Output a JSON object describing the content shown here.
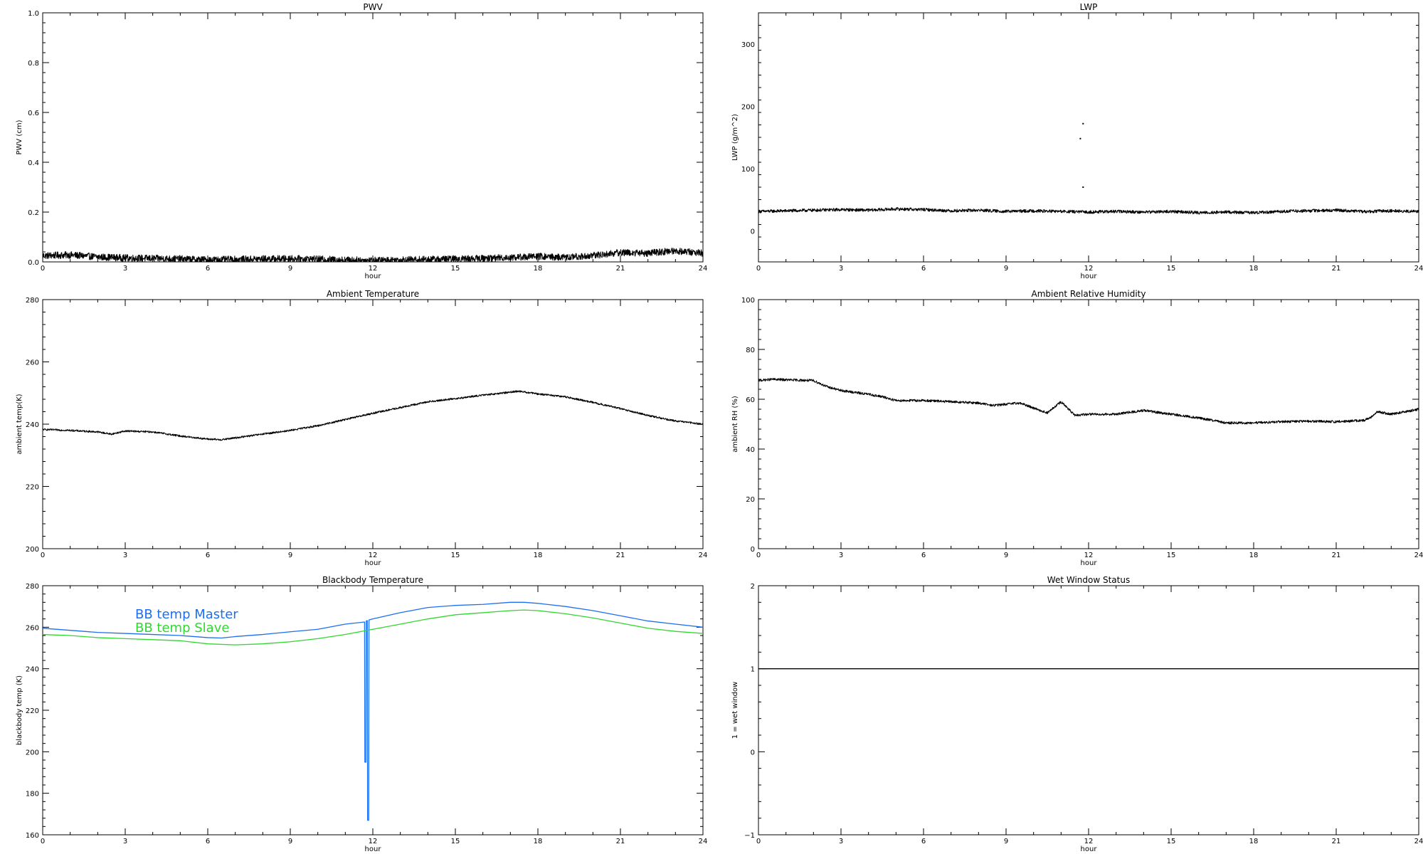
{
  "chart_data": [
    {
      "type": "line",
      "title": "PWV",
      "xlabel": "hour",
      "ylabel": "PWV (cm)",
      "xlim": [
        0,
        24
      ],
      "ylim": [
        0,
        1
      ],
      "xticks": [
        0,
        3,
        6,
        9,
        12,
        15,
        18,
        21,
        24
      ],
      "xtick_labels": [
        "0",
        "3",
        "6",
        "9",
        "12",
        "15",
        "18",
        "21",
        "24"
      ],
      "yticks": [
        0,
        0.2,
        0.4,
        0.6,
        0.8,
        1.0
      ],
      "ytick_labels": [
        "0.0",
        "0.2",
        "0.4",
        "0.6",
        "0.8",
        "1.0"
      ],
      "grid": false,
      "series": [
        {
          "color": "#000000",
          "noise": 0.014,
          "x": [
            0,
            1,
            2,
            3,
            4,
            5,
            6,
            7,
            8,
            9,
            10,
            11,
            12,
            13,
            14,
            15,
            16,
            17,
            18,
            19,
            20,
            21,
            22,
            23,
            24
          ],
          "y": [
            0.025,
            0.028,
            0.02,
            0.016,
            0.014,
            0.012,
            0.008,
            0.01,
            0.012,
            0.013,
            0.011,
            0.008,
            0.006,
            0.008,
            0.01,
            0.012,
            0.014,
            0.018,
            0.022,
            0.018,
            0.025,
            0.038,
            0.035,
            0.045,
            0.035
          ]
        }
      ]
    },
    {
      "type": "line",
      "title": "LWP",
      "xlabel": "hour",
      "ylabel": "LWP (g/m^2)",
      "xlim": [
        0,
        24
      ],
      "ylim": [
        -50,
        350
      ],
      "xticks": [
        0,
        3,
        6,
        9,
        12,
        15,
        18,
        21,
        24
      ],
      "xtick_labels": [
        "0",
        "3",
        "6",
        "9",
        "12",
        "15",
        "18",
        "21",
        "24"
      ],
      "yticks": [
        0,
        100,
        200,
        300
      ],
      "ytick_labels": [
        "0",
        "100",
        "200",
        "300"
      ],
      "grid": false,
      "series": [
        {
          "color": "#000000",
          "noise": 2.5,
          "x": [
            0,
            1,
            2,
            3,
            4,
            5,
            6,
            7,
            8,
            9,
            10,
            11,
            12,
            13,
            14,
            15,
            16,
            17,
            18,
            19,
            20,
            21,
            22,
            23,
            24
          ],
          "y": [
            31,
            32,
            33,
            34,
            33,
            35,
            34,
            32,
            33,
            31,
            32,
            31,
            30,
            31,
            30,
            31,
            29,
            30,
            29,
            31,
            32,
            33,
            31,
            32,
            31
          ]
        }
      ],
      "points": [
        {
          "x": 11.8,
          "y": 172
        },
        {
          "x": 11.7,
          "y": 148
        },
        {
          "x": 11.8,
          "y": 70
        }
      ]
    },
    {
      "type": "line",
      "title": "Ambient Temperature",
      "xlabel": "hour",
      "ylabel": "ambient temp(K)",
      "xlim": [
        0,
        24
      ],
      "ylim": [
        200,
        280
      ],
      "xticks": [
        0,
        3,
        6,
        9,
        12,
        15,
        18,
        21,
        24
      ],
      "xtick_labels": [
        "0",
        "3",
        "6",
        "9",
        "12",
        "15",
        "18",
        "21",
        "24"
      ],
      "yticks": [
        200,
        220,
        240,
        260,
        280
      ],
      "ytick_labels": [
        "200",
        "220",
        "240",
        "260",
        "280"
      ],
      "grid": false,
      "series": [
        {
          "color": "#000000",
          "noise": 0.3,
          "x": [
            0,
            1,
            2,
            2.5,
            3,
            4,
            5,
            6,
            6.5,
            7,
            8,
            9,
            10,
            11,
            12,
            13,
            14,
            15,
            16,
            17,
            17.3,
            18,
            19,
            20,
            21,
            22,
            23,
            24
          ],
          "y": [
            238.3,
            238,
            237.5,
            236.8,
            237.8,
            237.5,
            236.2,
            235.2,
            235.0,
            235.6,
            236.8,
            238,
            239.5,
            241.5,
            243.5,
            245.3,
            247.2,
            248.2,
            249.3,
            250.3,
            250.6,
            249.7,
            248.8,
            247,
            245,
            242.8,
            241,
            240
          ]
        }
      ]
    },
    {
      "type": "line",
      "title": "Ambient Relative Humidity",
      "xlabel": "hour",
      "ylabel": "ambient RH (%)",
      "xlim": [
        0,
        24
      ],
      "ylim": [
        0,
        100
      ],
      "xticks": [
        0,
        3,
        6,
        9,
        12,
        15,
        18,
        21,
        24
      ],
      "xtick_labels": [
        "0",
        "3",
        "6",
        "9",
        "12",
        "15",
        "18",
        "21",
        "24"
      ],
      "yticks": [
        0,
        20,
        40,
        60,
        80,
        100
      ],
      "ytick_labels": [
        "0",
        "20",
        "40",
        "60",
        "80",
        "100"
      ],
      "grid": false,
      "series": [
        {
          "color": "#000000",
          "noise": 0.5,
          "x": [
            0,
            0.5,
            1,
            2,
            2.5,
            3,
            4,
            4.5,
            5,
            6,
            7,
            8,
            8.5,
            9,
            9.5,
            10,
            10.5,
            11,
            11.5,
            12,
            13,
            14,
            15,
            16,
            16.5,
            17,
            18,
            19,
            20,
            21,
            22,
            22.3,
            22.5,
            23,
            24
          ],
          "y": [
            67.5,
            68,
            67.8,
            67.5,
            65,
            63.5,
            62,
            61,
            59.5,
            59.5,
            59,
            58.5,
            57.5,
            58,
            58.5,
            56.5,
            54.5,
            59,
            53.5,
            54,
            54,
            55.5,
            54,
            52.5,
            51.5,
            50.5,
            50.5,
            51,
            51.2,
            51,
            51.5,
            53,
            55,
            54,
            56
          ]
        }
      ]
    },
    {
      "type": "line",
      "title": "Blackbody Temperature",
      "xlabel": "hour",
      "ylabel": "blackbody temp (K)",
      "xlim": [
        0,
        24
      ],
      "ylim": [
        160,
        280
      ],
      "xticks": [
        0,
        3,
        6,
        9,
        12,
        15,
        18,
        21,
        24
      ],
      "xtick_labels": [
        "0",
        "3",
        "6",
        "9",
        "12",
        "15",
        "18",
        "21",
        "24"
      ],
      "yticks": [
        160,
        180,
        200,
        220,
        240,
        260,
        280
      ],
      "ytick_labels": [
        "160",
        "180",
        "200",
        "220",
        "240",
        "260",
        "280"
      ],
      "grid": false,
      "legend": "upper-left",
      "series": [
        {
          "name": "BB temp Master",
          "color": "#1e6ef0",
          "noise": 0,
          "x": [
            0,
            1,
            2,
            3,
            4,
            5,
            6,
            6.5,
            7,
            8,
            9,
            10,
            11,
            11.7,
            11.71,
            11.75,
            11.76,
            11.8,
            11.81,
            11.85,
            11.86,
            12,
            13,
            14,
            15,
            16,
            17,
            17.5,
            18,
            19,
            20,
            21,
            22,
            23,
            24
          ],
          "y": [
            259.5,
            258.5,
            257.5,
            257,
            256.5,
            256,
            255,
            254.8,
            255.5,
            256.5,
            257.8,
            259,
            261.5,
            262.5,
            195,
            195,
            263,
            263.2,
            167,
            167,
            263.5,
            264,
            267,
            269.5,
            270.5,
            271,
            272,
            272,
            271.5,
            270,
            268,
            265.5,
            263,
            261.5,
            260
          ]
        },
        {
          "name": "BB temp Slave",
          "color": "#2fd82f",
          "noise": 0,
          "x": [
            0,
            1,
            2,
            3,
            4,
            5,
            6,
            7,
            8,
            9,
            10,
            11,
            12,
            13,
            14,
            15,
            16,
            17,
            17.5,
            18,
            19,
            20,
            21,
            22,
            23,
            24
          ],
          "y": [
            256.5,
            256,
            255,
            254.5,
            254,
            253.5,
            252,
            251.5,
            252,
            253,
            254.5,
            256.5,
            259,
            261.5,
            264,
            266,
            267,
            268,
            268.3,
            268,
            266.5,
            264.5,
            262,
            259.5,
            258,
            257
          ]
        }
      ]
    },
    {
      "type": "line",
      "title": "Wet Window Status",
      "xlabel": "hour",
      "ylabel": "1 = wet window",
      "xlim": [
        0,
        24
      ],
      "ylim": [
        -1,
        2
      ],
      "xticks": [
        0,
        3,
        6,
        9,
        12,
        15,
        18,
        21,
        24
      ],
      "xtick_labels": [
        "0",
        "3",
        "6",
        "9",
        "12",
        "15",
        "18",
        "21",
        "24"
      ],
      "yticks": [
        -1,
        0,
        1,
        2
      ],
      "ytick_labels": [
        "−1",
        "0",
        "1",
        "2"
      ],
      "grid": false,
      "series": [
        {
          "color": "#000000",
          "noise": 0,
          "x": [
            0,
            24
          ],
          "y": [
            1,
            1
          ]
        }
      ]
    }
  ]
}
